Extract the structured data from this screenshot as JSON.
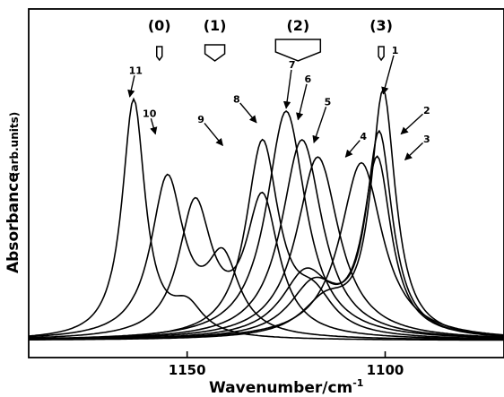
{
  "chart_data": {
    "type": "line",
    "xlabel": "Wavenumber/cm",
    "xlabel_sup": "-1",
    "ylabel": "Absorbance",
    "ylabel_unit": "(arb.units)",
    "xlim": [
      1190,
      1070
    ],
    "x_reversed": true,
    "x_ticks": [
      1150,
      1100
    ],
    "x_tick_labels": [
      "1150",
      "1100"
    ],
    "grid": false,
    "regions": [
      {
        "label": "(0)",
        "center": 1157,
        "marker": "rod"
      },
      {
        "label": "(1)",
        "center": 1143,
        "marker": "shield"
      },
      {
        "label": "(2)",
        "center": 1122,
        "marker": "shield-wide"
      },
      {
        "label": "(3)",
        "center": 1101,
        "marker": "rod"
      }
    ],
    "series": [
      {
        "name": "1",
        "peaks": [
          [
            1100.5,
            0.85,
            7.5
          ],
          [
            1115,
            0.12,
            15
          ]
        ]
      },
      {
        "name": "2",
        "peaks": [
          [
            1101.5,
            0.7,
            8
          ],
          [
            1118,
            0.18,
            15
          ]
        ]
      },
      {
        "name": "3",
        "peaks": [
          [
            1102,
            0.61,
            8.5
          ],
          [
            1120,
            0.22,
            15
          ]
        ]
      },
      {
        "name": "4",
        "peaks": [
          [
            1106,
            0.62,
            13
          ]
        ]
      },
      {
        "name": "5",
        "peaks": [
          [
            1117,
            0.64,
            13
          ]
        ]
      },
      {
        "name": "6",
        "peaks": [
          [
            1121,
            0.7,
            12.5
          ]
        ]
      },
      {
        "name": "7",
        "peaks": [
          [
            1125,
            0.8,
            12
          ]
        ]
      },
      {
        "name": "8",
        "peaks": [
          [
            1131,
            0.68,
            10
          ],
          [
            1118,
            0.12,
            12
          ]
        ]
      },
      {
        "name": "9",
        "peaks": [
          [
            1148,
            0.46,
            10
          ],
          [
            1131,
            0.48,
            10
          ]
        ]
      },
      {
        "name": "10",
        "peaks": [
          [
            1155,
            0.55,
            10
          ],
          [
            1141,
            0.26,
            10
          ]
        ]
      },
      {
        "name": "11",
        "peaks": [
          [
            1163.5,
            0.83,
            7
          ],
          [
            1150,
            0.1,
            10
          ]
        ]
      }
    ],
    "curve_labels": [
      {
        "text": "1",
        "x": 1097.5,
        "y": 1.0,
        "tx": 1100.5,
        "ty": 0.86
      },
      {
        "text": "2",
        "x": 1089.5,
        "y": 0.79,
        "tx": 1096,
        "ty": 0.72
      },
      {
        "text": "3",
        "x": 1089.5,
        "y": 0.69,
        "tx": 1095,
        "ty": 0.63
      },
      {
        "text": "4",
        "x": 1105.5,
        "y": 0.7,
        "tx": 1110,
        "ty": 0.64
      },
      {
        "text": "5",
        "x": 1114.5,
        "y": 0.82,
        "tx": 1118,
        "ty": 0.69
      },
      {
        "text": "6",
        "x": 1119.5,
        "y": 0.9,
        "tx": 1122,
        "ty": 0.77
      },
      {
        "text": "7",
        "x": 1123.5,
        "y": 0.95,
        "tx": 1125,
        "ty": 0.81
      },
      {
        "text": "8",
        "x": 1137.5,
        "y": 0.83,
        "tx": 1132.5,
        "ty": 0.76
      },
      {
        "text": "9",
        "x": 1146.5,
        "y": 0.76,
        "tx": 1141,
        "ty": 0.68
      },
      {
        "text": "10",
        "x": 1159.5,
        "y": 0.78,
        "tx": 1158,
        "ty": 0.72
      },
      {
        "text": "11",
        "x": 1163,
        "y": 0.93,
        "tx": 1164.5,
        "ty": 0.85
      }
    ]
  }
}
